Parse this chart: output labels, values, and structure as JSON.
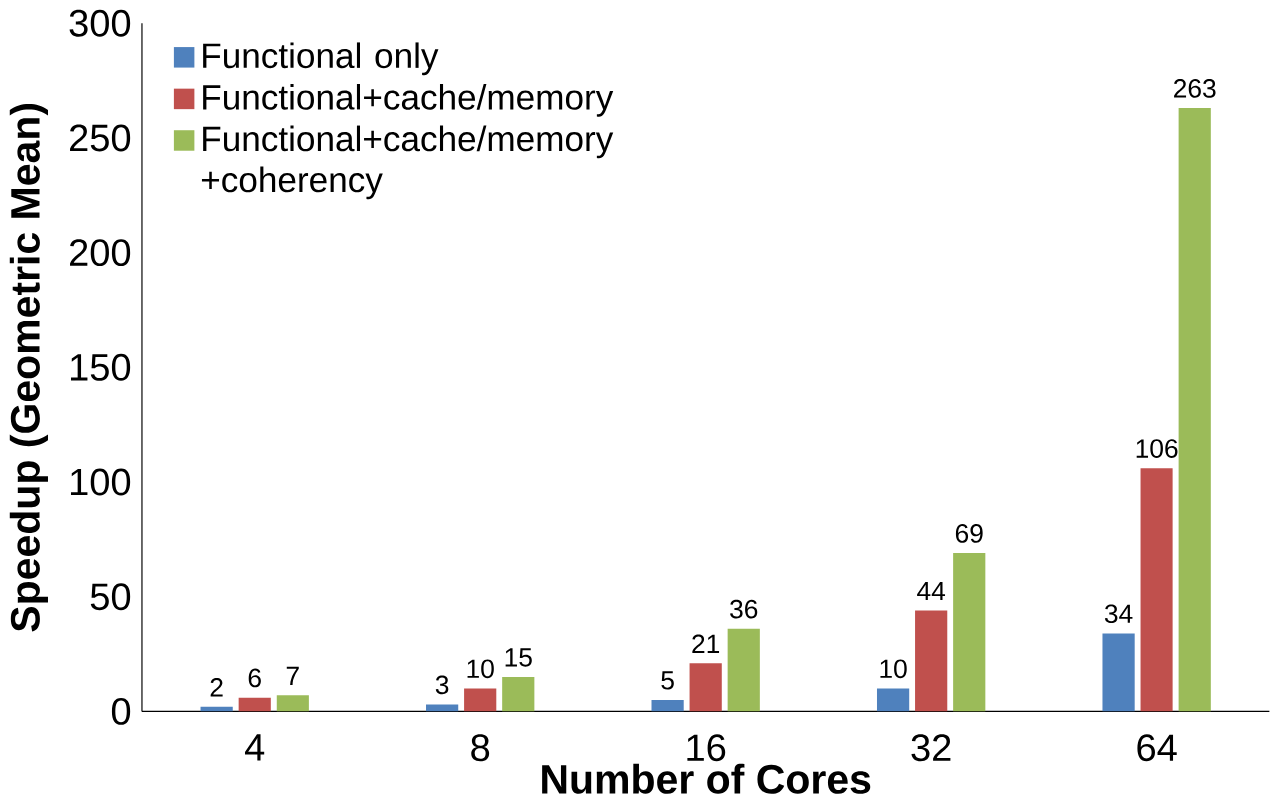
{
  "chart_data": {
    "type": "bar",
    "xlabel": "Number of Cores",
    "ylabel": "Speedup (Geometric Mean)",
    "categories": [
      "4",
      "8",
      "16",
      "32",
      "64"
    ],
    "series": [
      {
        "name": "Functional only",
        "color": "#4f81bd",
        "values": [
          2,
          3,
          5,
          10,
          34
        ]
      },
      {
        "name": "Functional+cache/memory",
        "color": "#c0504d",
        "values": [
          6,
          10,
          21,
          44,
          106
        ]
      },
      {
        "name": "Functional+cache/memory +coherency",
        "color": "#9bbb59",
        "values": [
          7,
          15,
          36,
          69,
          263
        ]
      }
    ],
    "ylim": [
      0,
      300
    ],
    "yticks": [
      0,
      50,
      100,
      150,
      200,
      250,
      300
    ],
    "data_labels": true,
    "legend": "top left",
    "grid": false
  }
}
